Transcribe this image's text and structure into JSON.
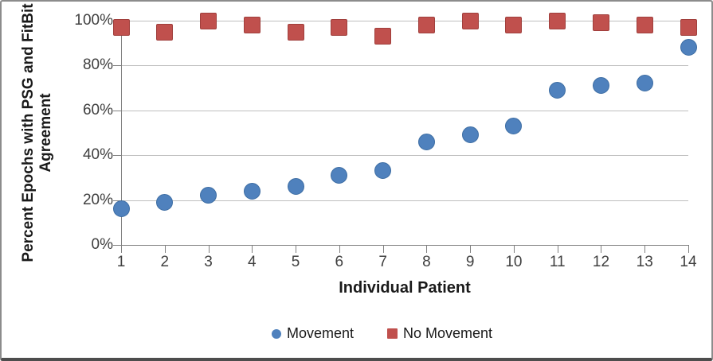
{
  "chart_data": {
    "type": "scatter",
    "title": "",
    "xlabel": "Individual Patient",
    "ylabel": "Percent Epochs with PSG and FitBit Agreement",
    "ylabel_lines": [
      "Percent Epochs with PSG and FitBit",
      "Agreement"
    ],
    "x": [
      1,
      2,
      3,
      4,
      5,
      6,
      7,
      8,
      9,
      10,
      11,
      12,
      13,
      14
    ],
    "x_tick_labels": [
      "1",
      "2",
      "3",
      "4",
      "5",
      "6",
      "7",
      "8",
      "9",
      "10",
      "11",
      "12",
      "13",
      "14"
    ],
    "ylim": [
      0,
      100
    ],
    "y_tick_values": [
      0,
      20,
      40,
      60,
      80,
      100
    ],
    "y_tick_labels": [
      "0%",
      "20%",
      "40%",
      "60%",
      "80%",
      "100%"
    ],
    "grid": "horizontal-only",
    "legend_position": "bottom-center",
    "series": [
      {
        "name": "Movement",
        "marker": "circle",
        "color": "#4F81BD",
        "border_color": "#3D6DA3",
        "values": [
          16,
          19,
          22,
          24,
          26,
          31,
          33,
          46,
          49,
          53,
          69,
          71,
          72,
          88
        ]
      },
      {
        "name": "No Movement",
        "marker": "square",
        "color": "#C0504D",
        "border_color": "#A03F3C",
        "values": [
          97,
          95,
          100,
          98,
          95,
          97,
          93,
          98,
          100,
          98,
          100,
          99,
          98,
          97
        ]
      }
    ]
  },
  "colors": {
    "gridline": "#BFBFBF",
    "axis_line": "#808080",
    "tick_label": "#404040",
    "title_text": "#1A1A1A",
    "background": "#FFFFFF",
    "frame_border": "#8C8C8C"
  }
}
